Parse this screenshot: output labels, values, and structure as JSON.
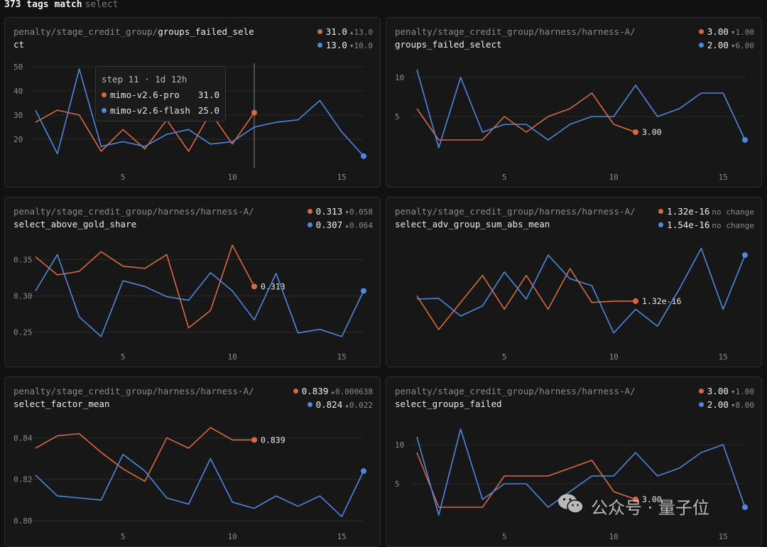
{
  "header": {
    "count_label": "373 tags match",
    "filter": "select"
  },
  "series_colors": {
    "orange": "#d8693e",
    "blue": "#4e86e0"
  },
  "tooltip": {
    "head": "step 11 · 1d 12h",
    "rows": [
      {
        "name": "mimo-v2.6-pro",
        "value": "31.0",
        "color": "#d8693e"
      },
      {
        "name": "mimo-v2.6-flash",
        "value": "25.0",
        "color": "#4e86e0"
      }
    ]
  },
  "watermark": {
    "text": "公众号 · 量子位",
    "icon": "wechat-icon"
  },
  "cards": [
    {
      "title_prefix": "penalty/stage_credit_group/",
      "title_strong": "groups_failed_select",
      "legend": [
        {
          "value": "31.0",
          "delta": "▴13.0",
          "color": "#d8693e"
        },
        {
          "value": "13.0",
          "delta": "▾10.0",
          "color": "#4e86e0"
        }
      ]
    },
    {
      "title_prefix": "penalty/stage_credit_group/harness/harness-A/",
      "title_strong": "groups_failed_select",
      "legend": [
        {
          "value": "3.00",
          "delta": "▾1.00",
          "color": "#d8693e"
        },
        {
          "value": "2.00",
          "delta": "▾6.00",
          "color": "#4e86e0"
        }
      ]
    },
    {
      "title_prefix": "penalty/stage_credit_group/harness/harness-A/",
      "title_strong": "select_above_gold_share",
      "legend": [
        {
          "value": "0.313",
          "delta": "▾0.058",
          "color": "#d8693e"
        },
        {
          "value": "0.307",
          "delta": "▴0.064",
          "color": "#4e86e0"
        }
      ]
    },
    {
      "title_prefix": "penalty/stage_credit_group/harness/harness-A/",
      "title_strong": "select_adv_group_sum_abs_mean",
      "legend": [
        {
          "value": "1.32e-16",
          "delta": "no change",
          "color": "#d8693e"
        },
        {
          "value": "1.54e-16",
          "delta": "no change",
          "color": "#4e86e0"
        }
      ]
    },
    {
      "title_prefix": "penalty/stage_credit_group/harness/harness-A/",
      "title_strong": "select_factor_mean",
      "legend": [
        {
          "value": "0.839",
          "delta": "▴0.000638",
          "color": "#d8693e"
        },
        {
          "value": "0.824",
          "delta": "▴0.022",
          "color": "#4e86e0"
        }
      ]
    },
    {
      "title_prefix": "penalty/stage_credit_group/harness/harness-A/",
      "title_strong": "select_groups_failed",
      "legend": [
        {
          "value": "3.00",
          "delta": "▾1.00",
          "color": "#d8693e"
        },
        {
          "value": "2.00",
          "delta": "▾8.00",
          "color": "#4e86e0"
        }
      ]
    }
  ],
  "chart_data": [
    {
      "type": "line",
      "xlim": [
        1,
        16
      ],
      "ylim": [
        10,
        52
      ],
      "xticks": [
        5,
        10,
        15
      ],
      "yticks": [
        20,
        30,
        40,
        50
      ],
      "yticklabels": [
        "20",
        "30",
        "40",
        "50"
      ],
      "hover_step": 11,
      "series": [
        {
          "name": "mimo-v2.6-pro",
          "color": "#d8693e",
          "x": [
            1,
            2,
            3,
            4,
            5,
            6,
            7,
            8,
            9,
            10,
            11
          ],
          "y": [
            27,
            32,
            30,
            15,
            24,
            16,
            28,
            15,
            31,
            18,
            31
          ]
        },
        {
          "name": "mimo-v2.6-flash",
          "color": "#4e86e0",
          "x": [
            1,
            2,
            3,
            4,
            5,
            6,
            7,
            8,
            9,
            10,
            11,
            12,
            13,
            14,
            15,
            16
          ],
          "y": [
            32,
            14,
            49,
            17,
            19,
            17,
            22,
            24,
            18,
            19,
            25,
            27,
            28,
            36,
            23,
            13
          ]
        }
      ]
    },
    {
      "type": "line",
      "xlim": [
        1,
        16
      ],
      "ylim": [
        -1,
        12
      ],
      "xticks": [
        5,
        10,
        15
      ],
      "yticks": [
        5,
        10
      ],
      "yticklabels": [
        "5",
        "10"
      ],
      "end_label": "3.00",
      "series": [
        {
          "color": "#d8693e",
          "x": [
            1,
            2,
            3,
            4,
            5,
            6,
            7,
            8,
            9,
            10,
            11
          ],
          "y": [
            6,
            2,
            2,
            2,
            5,
            3,
            5,
            6,
            8,
            4,
            3
          ]
        },
        {
          "color": "#4e86e0",
          "x": [
            1,
            2,
            3,
            4,
            5,
            6,
            7,
            8,
            9,
            10,
            11,
            12,
            13,
            14,
            15,
            16
          ],
          "y": [
            11,
            1,
            10,
            3,
            4,
            4,
            2,
            4,
            5,
            5,
            9,
            5,
            6,
            8,
            8,
            2
          ]
        }
      ]
    },
    {
      "type": "line",
      "xlim": [
        1,
        16
      ],
      "ylim": [
        0.235,
        0.375
      ],
      "xticks": [
        5,
        10,
        15
      ],
      "yticks": [
        0.25,
        0.3,
        0.35
      ],
      "yticklabels": [
        "0.25",
        "0.30",
        "0.35"
      ],
      "end_label": "0.313",
      "series": [
        {
          "color": "#d8693e",
          "x": [
            1,
            2,
            3,
            4,
            5,
            6,
            7,
            8,
            9,
            10,
            11
          ],
          "y": [
            0.354,
            0.329,
            0.334,
            0.361,
            0.341,
            0.338,
            0.357,
            0.256,
            0.28,
            0.37,
            0.313
          ]
        },
        {
          "color": "#4e86e0",
          "x": [
            1,
            2,
            3,
            4,
            5,
            6,
            7,
            8,
            9,
            10,
            11,
            12,
            13,
            14,
            15,
            16
          ],
          "y": [
            0.307,
            0.357,
            0.271,
            0.244,
            0.321,
            0.313,
            0.299,
            0.294,
            0.332,
            0.307,
            0.267,
            0.331,
            0.249,
            0.254,
            0.244,
            0.307
          ]
        }
      ]
    },
    {
      "type": "line",
      "xlim": [
        1,
        16
      ],
      "ylim": [
        0,
        15
      ],
      "xticks": [
        5,
        10,
        15
      ],
      "yticks": [],
      "yticklabels": [],
      "end_label": "1.32e-16",
      "series": [
        {
          "color": "#d8693e",
          "x": [
            1,
            2,
            3,
            4,
            5,
            6,
            7,
            8,
            9,
            10,
            11
          ],
          "y": [
            7,
            2,
            6,
            10,
            5,
            10,
            5,
            11,
            6,
            6.2,
            6.2
          ]
        },
        {
          "color": "#4e86e0",
          "x": [
            1,
            2,
            3,
            4,
            5,
            6,
            7,
            8,
            9,
            10,
            11,
            12,
            13,
            14,
            15,
            16
          ],
          "y": [
            6.5,
            6.6,
            4,
            5.5,
            10.5,
            6.5,
            13,
            9.5,
            8.5,
            1.5,
            5,
            2.5,
            8,
            14,
            5,
            13
          ]
        }
      ]
    },
    {
      "type": "line",
      "xlim": [
        1,
        16
      ],
      "ylim": [
        0.799,
        0.848
      ],
      "xticks": [
        5,
        10,
        15
      ],
      "yticks": [
        0.8,
        0.82,
        0.84
      ],
      "yticklabels": [
        "0.80",
        "0.82",
        "0.84"
      ],
      "end_label": "0.839",
      "series": [
        {
          "color": "#d8693e",
          "x": [
            1,
            2,
            3,
            4,
            5,
            6,
            7,
            8,
            9,
            10,
            11
          ],
          "y": [
            0.835,
            0.841,
            0.842,
            0.833,
            0.825,
            0.819,
            0.84,
            0.835,
            0.845,
            0.839,
            0.839
          ]
        },
        {
          "color": "#4e86e0",
          "x": [
            1,
            2,
            3,
            4,
            5,
            6,
            7,
            8,
            9,
            10,
            11,
            12,
            13,
            14,
            15,
            16
          ],
          "y": [
            0.822,
            0.812,
            0.811,
            0.81,
            0.832,
            0.824,
            0.811,
            0.808,
            0.83,
            0.809,
            0.806,
            0.812,
            0.807,
            0.812,
            0.802,
            0.824
          ]
        }
      ]
    },
    {
      "type": "line",
      "xlim": [
        1,
        16
      ],
      "ylim": [
        0,
        13
      ],
      "xticks": [
        5,
        10,
        15
      ],
      "yticks": [
        5,
        10
      ],
      "yticklabels": [
        "5",
        "10"
      ],
      "end_label": "3.00",
      "series": [
        {
          "color": "#d8693e",
          "x": [
            1,
            2,
            3,
            4,
            5,
            6,
            7,
            8,
            9,
            10,
            11
          ],
          "y": [
            9,
            2,
            2,
            2,
            6,
            6,
            6,
            7,
            8,
            4,
            3
          ]
        },
        {
          "color": "#4e86e0",
          "x": [
            1,
            2,
            3,
            4,
            5,
            6,
            7,
            8,
            9,
            10,
            11,
            12,
            13,
            14,
            15,
            16
          ],
          "y": [
            11,
            1,
            12,
            3,
            5,
            5,
            2,
            4,
            6,
            6,
            9,
            6,
            7,
            9,
            10,
            2
          ]
        }
      ]
    }
  ]
}
